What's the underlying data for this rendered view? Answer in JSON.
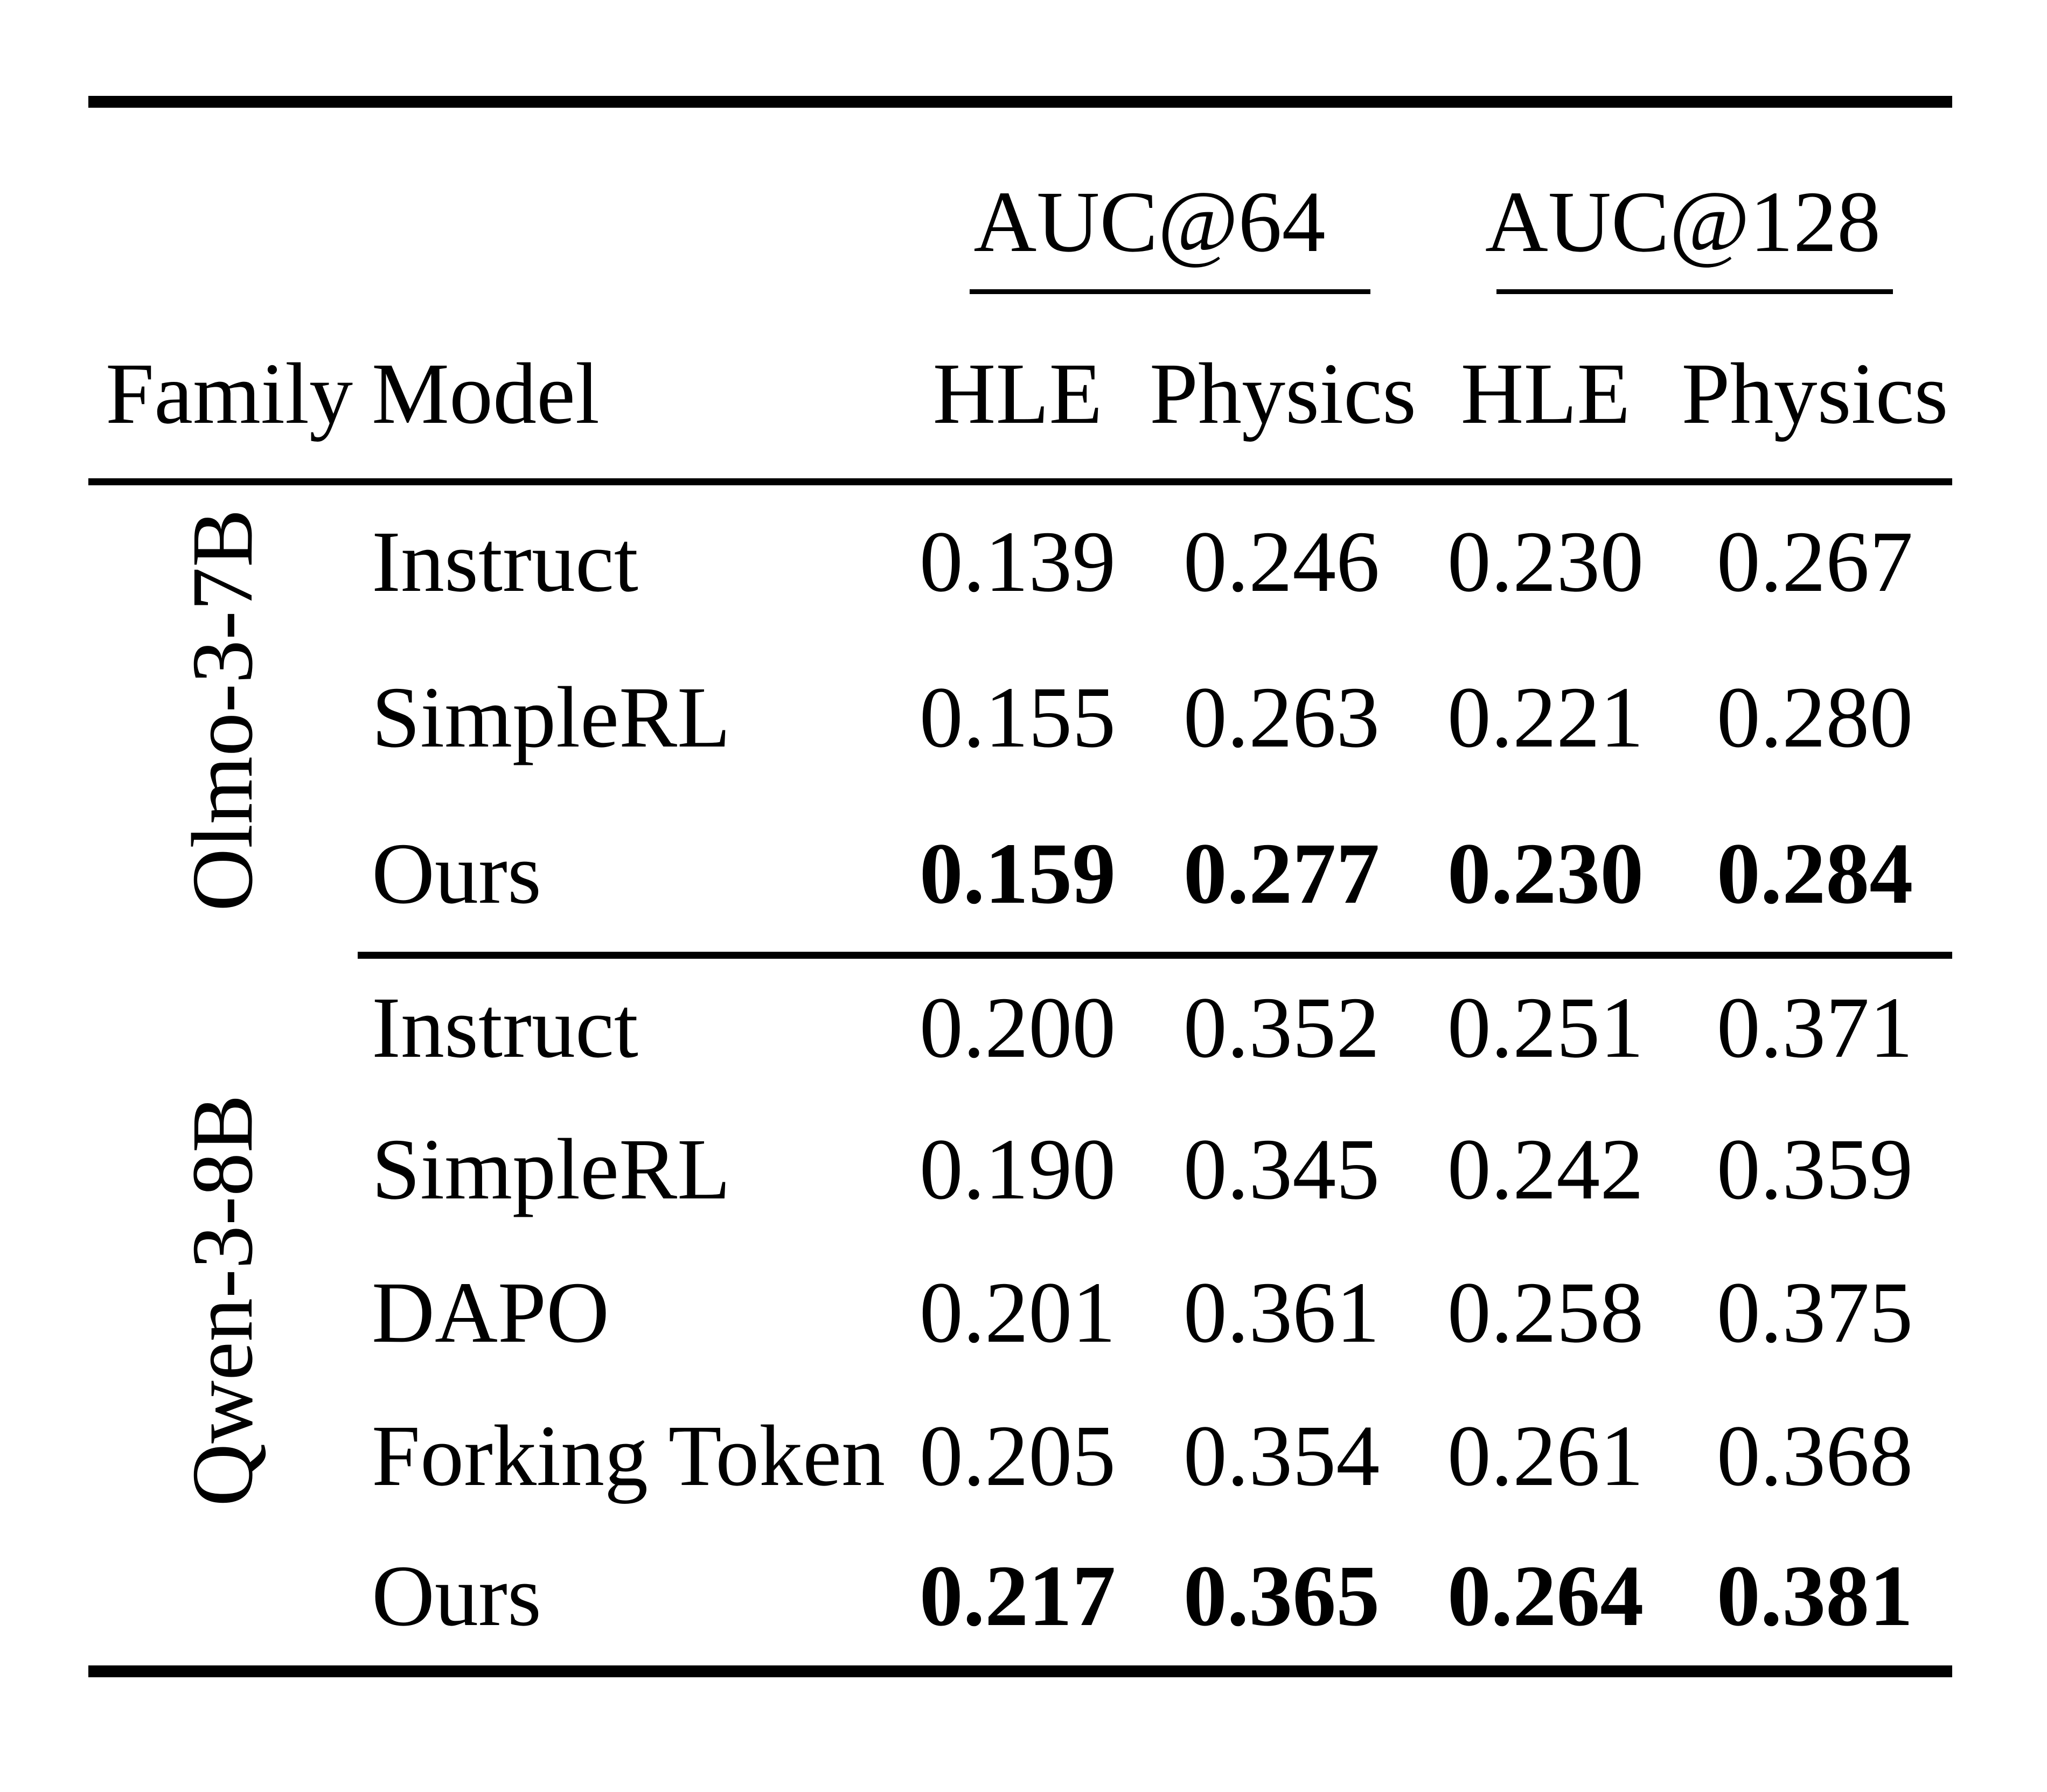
{
  "table": {
    "group_headers": [
      {
        "label": "AUC@64"
      },
      {
        "label": "AUC@128"
      }
    ],
    "col_headers": {
      "family": "Family",
      "model": "Model",
      "metrics": [
        "HLE",
        "Physics",
        "HLE",
        "Physics"
      ]
    },
    "groups": [
      {
        "family": "Olmo-3-7B",
        "rows": [
          {
            "model": "Instruct",
            "values": [
              "0.139",
              "0.246",
              "0.230",
              "0.267"
            ],
            "bold": false
          },
          {
            "model": "SimpleRL",
            "values": [
              "0.155",
              "0.263",
              "0.221",
              "0.280"
            ],
            "bold": false
          },
          {
            "model": "Ours",
            "values": [
              "0.159",
              "0.277",
              "0.230",
              "0.284"
            ],
            "bold": true
          }
        ]
      },
      {
        "family": "Qwen-3-8B",
        "rows": [
          {
            "model": "Instruct",
            "values": [
              "0.200",
              "0.352",
              "0.251",
              "0.371"
            ],
            "bold": false
          },
          {
            "model": "SimpleRL",
            "values": [
              "0.190",
              "0.345",
              "0.242",
              "0.359"
            ],
            "bold": false
          },
          {
            "model": "DAPO",
            "values": [
              "0.201",
              "0.361",
              "0.258",
              "0.375"
            ],
            "bold": false
          },
          {
            "model": "Forking Token",
            "values": [
              "0.205",
              "0.354",
              "0.261",
              "0.368"
            ],
            "bold": false
          },
          {
            "model": "Ours",
            "values": [
              "0.217",
              "0.365",
              "0.264",
              "0.381"
            ],
            "bold": true
          }
        ]
      }
    ],
    "colors": {
      "text": "#000000",
      "background": "#ffffff",
      "rule": "#000000"
    }
  }
}
